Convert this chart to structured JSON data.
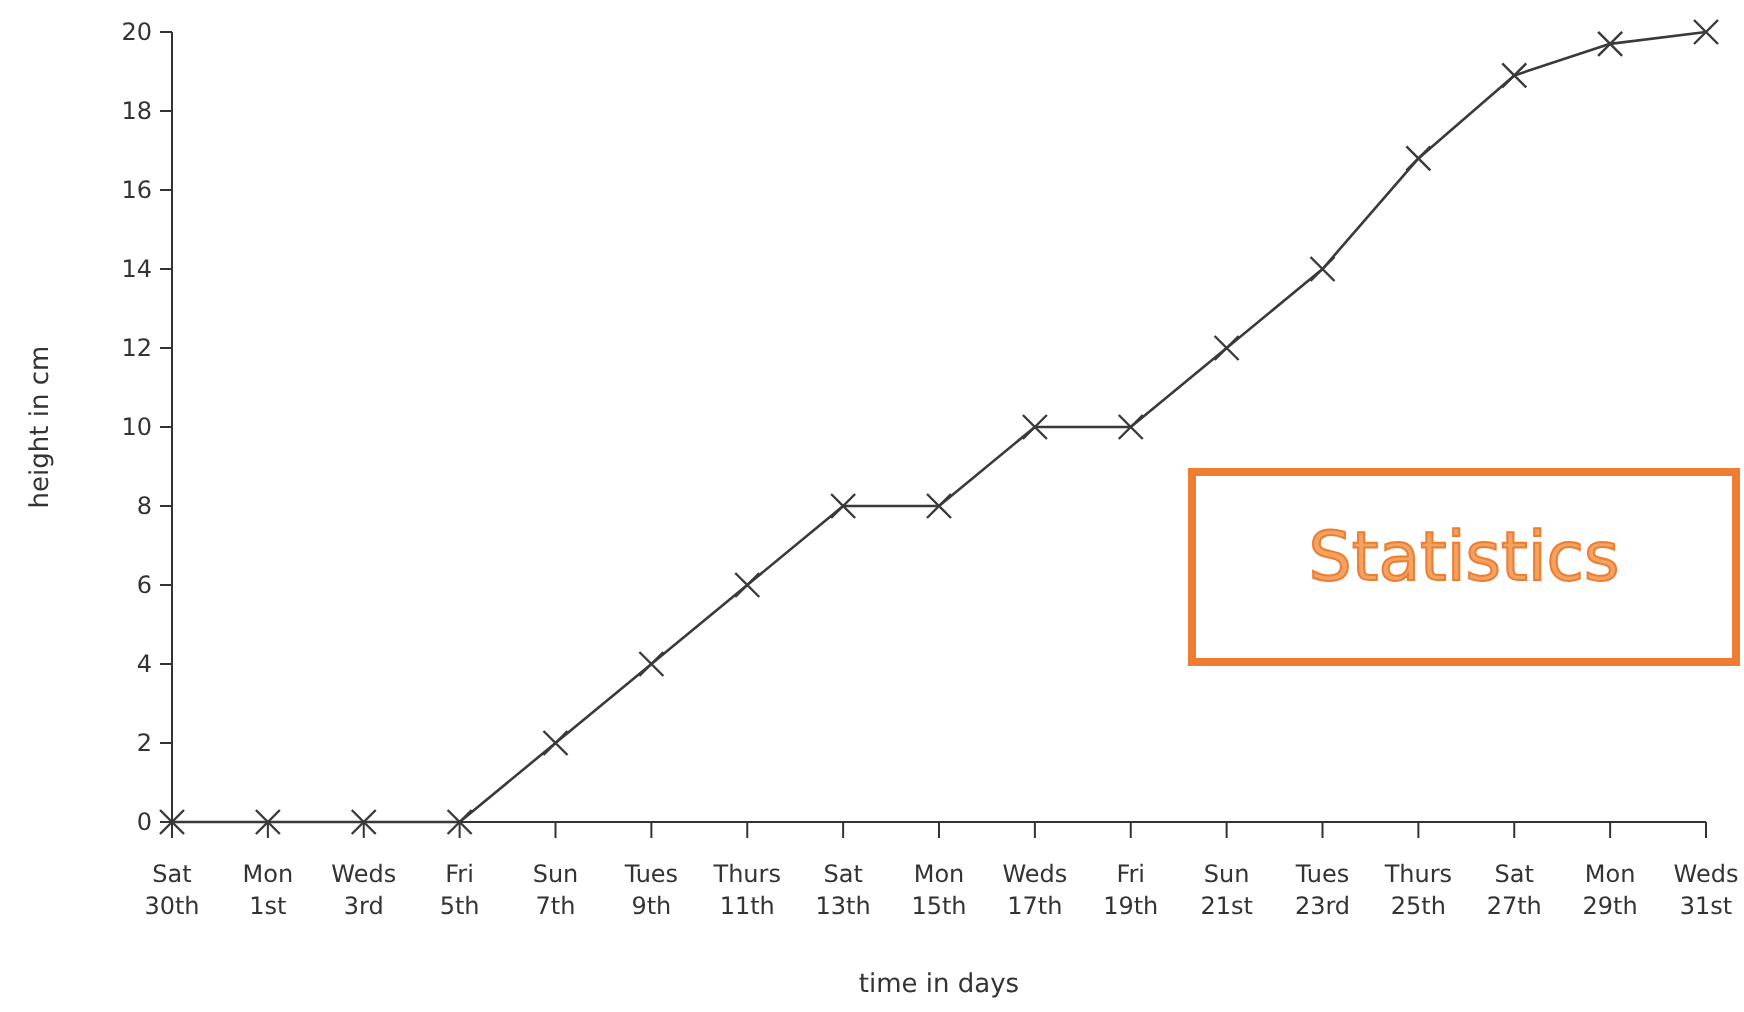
{
  "chart_data": {
    "type": "line",
    "xlabel": "time in days",
    "ylabel": "height in cm",
    "categories": [
      "Sat 30th",
      "Mon 1st",
      "Weds 3rd",
      "Fri 5th",
      "Sun 7th",
      "Tues 9th",
      "Thurs 11th",
      "Sat 13th",
      "Mon 15th",
      "Weds 17th",
      "Fri 19th",
      "Sun 21st",
      "Tues 23rd",
      "Thurs 25th",
      "Sat 27th",
      "Mon 29th",
      "Weds 31st"
    ],
    "series": [
      {
        "color": "#3a3a3a",
        "values": [
          0,
          0,
          0,
          0,
          2,
          4,
          6,
          8,
          8,
          10,
          10,
          12,
          14,
          16.8,
          18.9,
          19.7,
          20
        ]
      }
    ],
    "ylim": [
      0,
      20
    ],
    "yticks": [
      0,
      2,
      4,
      6,
      8,
      10,
      12,
      14,
      16,
      18,
      20
    ],
    "grid": false,
    "marker": "cross",
    "line_style": "solid",
    "annotations": [
      "Statistics"
    ]
  }
}
